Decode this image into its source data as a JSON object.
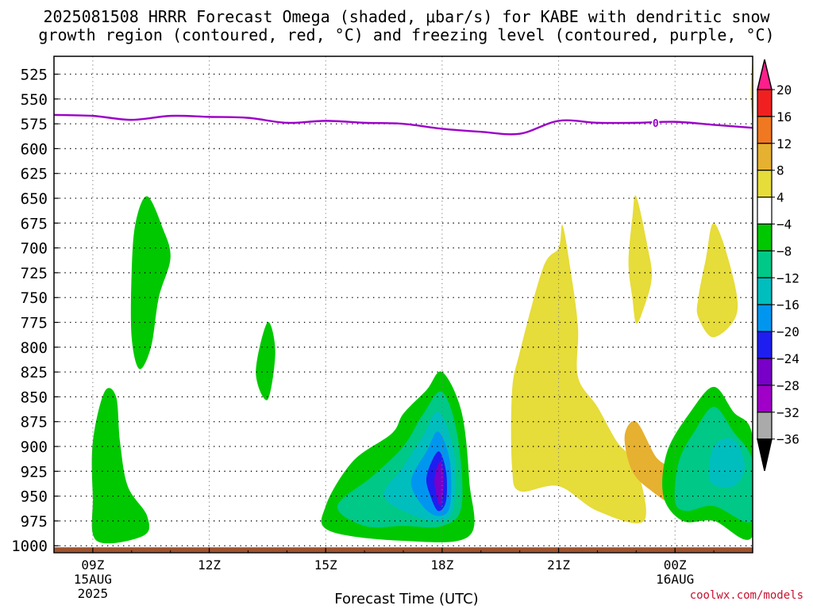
{
  "title_line_1": "2025081508 HRRR Forecast Omega (shaded, μbar/s) for KABE with dendritic snow",
  "title_line_2": "growth region (contoured, red, °C) and freezing level (contoured, purple, °C)",
  "site_label": "coolwx.com/models",
  "chart_data": {
    "type": "contour",
    "title": "2025081508 HRRR Forecast Omega (shaded, μbar/s) for KABE with dendritic snow growth region (contoured, red, °C) and freezing level (contoured, purple, °C)",
    "xlabel": "Forecast Time (UTC)",
    "ylabel": "",
    "x_ticks": [
      {
        "label": "09Z",
        "sub": [
          "15AUG",
          "2025"
        ],
        "hour": 9
      },
      {
        "label": "12Z",
        "sub": [],
        "hour": 12
      },
      {
        "label": "15Z",
        "sub": [],
        "hour": 15
      },
      {
        "label": "18Z",
        "sub": [],
        "hour": 18
      },
      {
        "label": "21Z",
        "sub": [],
        "hour": 21
      },
      {
        "label": "00Z",
        "sub": [
          "16AUG"
        ],
        "hour": 24
      }
    ],
    "xlim_hours": [
      8,
      26
    ],
    "y_ticks": [
      "525",
      "550",
      "575",
      "600",
      "625",
      "650",
      "675",
      "700",
      "725",
      "750",
      "775",
      "800",
      "825",
      "850",
      "875",
      "900",
      "925",
      "950",
      "975",
      "1000"
    ],
    "y_levels": [
      525,
      550,
      575,
      600,
      625,
      650,
      675,
      700,
      725,
      750,
      775,
      800,
      825,
      850,
      875,
      900,
      925,
      950,
      975,
      1000
    ],
    "ylim_hPa": [
      507,
      1007
    ],
    "colorbar": {
      "labels": [
        "20",
        "16",
        "12",
        "8",
        "4",
        "−4",
        "−8",
        "−12",
        "−16",
        "−20",
        "−24",
        "−28",
        "−32",
        "−36"
      ],
      "colors": [
        "#ff1e8c",
        "#f02020",
        "#f07820",
        "#e6b030",
        "#e6dc3a",
        "#ffffff",
        "#00c800",
        "#00c887",
        "#00bebe",
        "#0096f0",
        "#1e1ef0",
        "#7800c8",
        "#a000c8",
        "#aaaaaa",
        "#000000"
      ]
    },
    "freezing_level": {
      "label": "0",
      "color": "#9b00c8",
      "points": [
        [
          8,
          566
        ],
        [
          9,
          567
        ],
        [
          10,
          571
        ],
        [
          11,
          567
        ],
        [
          12,
          568
        ],
        [
          13,
          569
        ],
        [
          14,
          574
        ],
        [
          15,
          572
        ],
        [
          16,
          574
        ],
        [
          17,
          575
        ],
        [
          18,
          580
        ],
        [
          19,
          583
        ],
        [
          20,
          585
        ],
        [
          21,
          572
        ],
        [
          22,
          574
        ],
        [
          23,
          574
        ],
        [
          24,
          573
        ],
        [
          25,
          576
        ],
        [
          26,
          579
        ]
      ]
    },
    "terrain_color": "#a0522d",
    "regions": [
      {
        "color": "#00c800",
        "points": [
          [
            9.1,
            995
          ],
          [
            9.0,
            950
          ],
          [
            9.0,
            895
          ],
          [
            9.3,
            845
          ],
          [
            9.6,
            850
          ],
          [
            9.7,
            895
          ],
          [
            9.9,
            940
          ],
          [
            10.4,
            970
          ],
          [
            10.3,
            990
          ]
        ]
      },
      {
        "color": "#00c800",
        "points": [
          [
            10.0,
            725
          ],
          [
            10.1,
            675
          ],
          [
            10.4,
            648
          ],
          [
            10.8,
            680
          ],
          [
            11.0,
            710
          ],
          [
            10.7,
            750
          ],
          [
            10.5,
            800
          ],
          [
            10.2,
            822
          ],
          [
            10.0,
            790
          ]
        ]
      },
      {
        "color": "#00c800",
        "points": [
          [
            13.2,
            825
          ],
          [
            13.5,
            775
          ],
          [
            13.7,
            805
          ],
          [
            13.5,
            853
          ]
        ]
      },
      {
        "color": "#00c800",
        "points": [
          [
            15.0,
            960
          ],
          [
            15.7,
            915
          ],
          [
            16.7,
            887
          ],
          [
            17.0,
            867
          ],
          [
            17.6,
            843
          ],
          [
            18.0,
            825
          ],
          [
            18.5,
            865
          ],
          [
            18.7,
            935
          ],
          [
            18.7,
            990
          ],
          [
            17.0,
            995
          ],
          [
            15.1,
            985
          ]
        ]
      },
      {
        "color": "#00c887",
        "points": [
          [
            15.3,
            960
          ],
          [
            16.2,
            930
          ],
          [
            17.0,
            900
          ],
          [
            17.5,
            868
          ],
          [
            18.0,
            845
          ],
          [
            18.4,
            890
          ],
          [
            18.5,
            960
          ],
          [
            18.0,
            980
          ],
          [
            17.0,
            980
          ],
          [
            16.0,
            980
          ]
        ]
      },
      {
        "color": "#00bebe",
        "points": [
          [
            16.5,
            950
          ],
          [
            17.0,
            920
          ],
          [
            17.5,
            890
          ],
          [
            17.9,
            865
          ],
          [
            18.3,
            905
          ],
          [
            18.3,
            960
          ],
          [
            18.0,
            975
          ],
          [
            17.3,
            970
          ]
        ]
      },
      {
        "color": "#0096f0",
        "points": [
          [
            17.2,
            935
          ],
          [
            17.6,
            905
          ],
          [
            17.9,
            885
          ],
          [
            18.2,
            915
          ],
          [
            18.2,
            960
          ],
          [
            17.9,
            970
          ],
          [
            17.5,
            960
          ]
        ]
      },
      {
        "color": "#1e1ef0",
        "points": [
          [
            17.6,
            930
          ],
          [
            17.9,
            905
          ],
          [
            18.1,
            925
          ],
          [
            18.1,
            955
          ],
          [
            17.9,
            965
          ],
          [
            17.7,
            950
          ]
        ]
      },
      {
        "color": "#7800c8",
        "points": [
          [
            17.8,
            935
          ],
          [
            17.95,
            915
          ],
          [
            18.05,
            935
          ],
          [
            17.95,
            960
          ]
        ]
      },
      {
        "color": "#e6dc3a",
        "points": [
          [
            19.8,
            845
          ],
          [
            20.0,
            805
          ],
          [
            20.6,
            720
          ],
          [
            21.0,
            700
          ],
          [
            21.1,
            677
          ],
          [
            21.3,
            720
          ],
          [
            21.5,
            780
          ],
          [
            21.5,
            830
          ],
          [
            22.0,
            860
          ],
          [
            22.5,
            895
          ],
          [
            23.0,
            920
          ],
          [
            23.2,
            975
          ],
          [
            22.0,
            965
          ],
          [
            21.0,
            940
          ],
          [
            20.0,
            945
          ],
          [
            19.8,
            920
          ]
        ]
      },
      {
        "color": "#e6b030",
        "points": [
          [
            22.7,
            890
          ],
          [
            23.0,
            875
          ],
          [
            23.5,
            910
          ],
          [
            23.9,
            925
          ],
          [
            23.9,
            955
          ],
          [
            23.4,
            945
          ],
          [
            22.9,
            925
          ]
        ]
      },
      {
        "color": "#e6dc3a",
        "points": [
          [
            22.8,
            715
          ],
          [
            22.9,
            670
          ],
          [
            23.0,
            648
          ],
          [
            23.3,
            700
          ],
          [
            23.4,
            730
          ],
          [
            23.2,
            760
          ],
          [
            23.0,
            776
          ],
          [
            22.9,
            750
          ]
        ]
      },
      {
        "color": "#e6dc3a",
        "points": [
          [
            24.6,
            750
          ],
          [
            24.8,
            710
          ],
          [
            25.0,
            675
          ],
          [
            25.4,
            715
          ],
          [
            25.6,
            765
          ],
          [
            25.0,
            790
          ],
          [
            24.6,
            770
          ]
        ]
      },
      {
        "color": "#00c800",
        "points": [
          [
            23.7,
            950
          ],
          [
            23.8,
            905
          ],
          [
            24.4,
            865
          ],
          [
            25.0,
            840
          ],
          [
            25.5,
            865
          ],
          [
            26.0,
            890
          ],
          [
            26.0,
            990
          ],
          [
            25.0,
            975
          ],
          [
            24.2,
            975
          ]
        ]
      },
      {
        "color": "#00c887",
        "points": [
          [
            24.0,
            955
          ],
          [
            24.1,
            915
          ],
          [
            24.5,
            885
          ],
          [
            25.0,
            860
          ],
          [
            25.5,
            885
          ],
          [
            26.0,
            915
          ],
          [
            26.0,
            975
          ],
          [
            25.0,
            960
          ],
          [
            24.3,
            965
          ]
        ]
      },
      {
        "color": "#00bebe",
        "points": [
          [
            24.9,
            935
          ],
          [
            25.0,
            900
          ],
          [
            25.5,
            893
          ],
          [
            25.8,
            920
          ],
          [
            25.5,
            940
          ]
        ]
      },
      {
        "color": "#e6dc3a",
        "points": [
          [
            25.95,
            545
          ],
          [
            26.0,
            512
          ],
          [
            26.0,
            570
          ]
        ]
      }
    ]
  }
}
